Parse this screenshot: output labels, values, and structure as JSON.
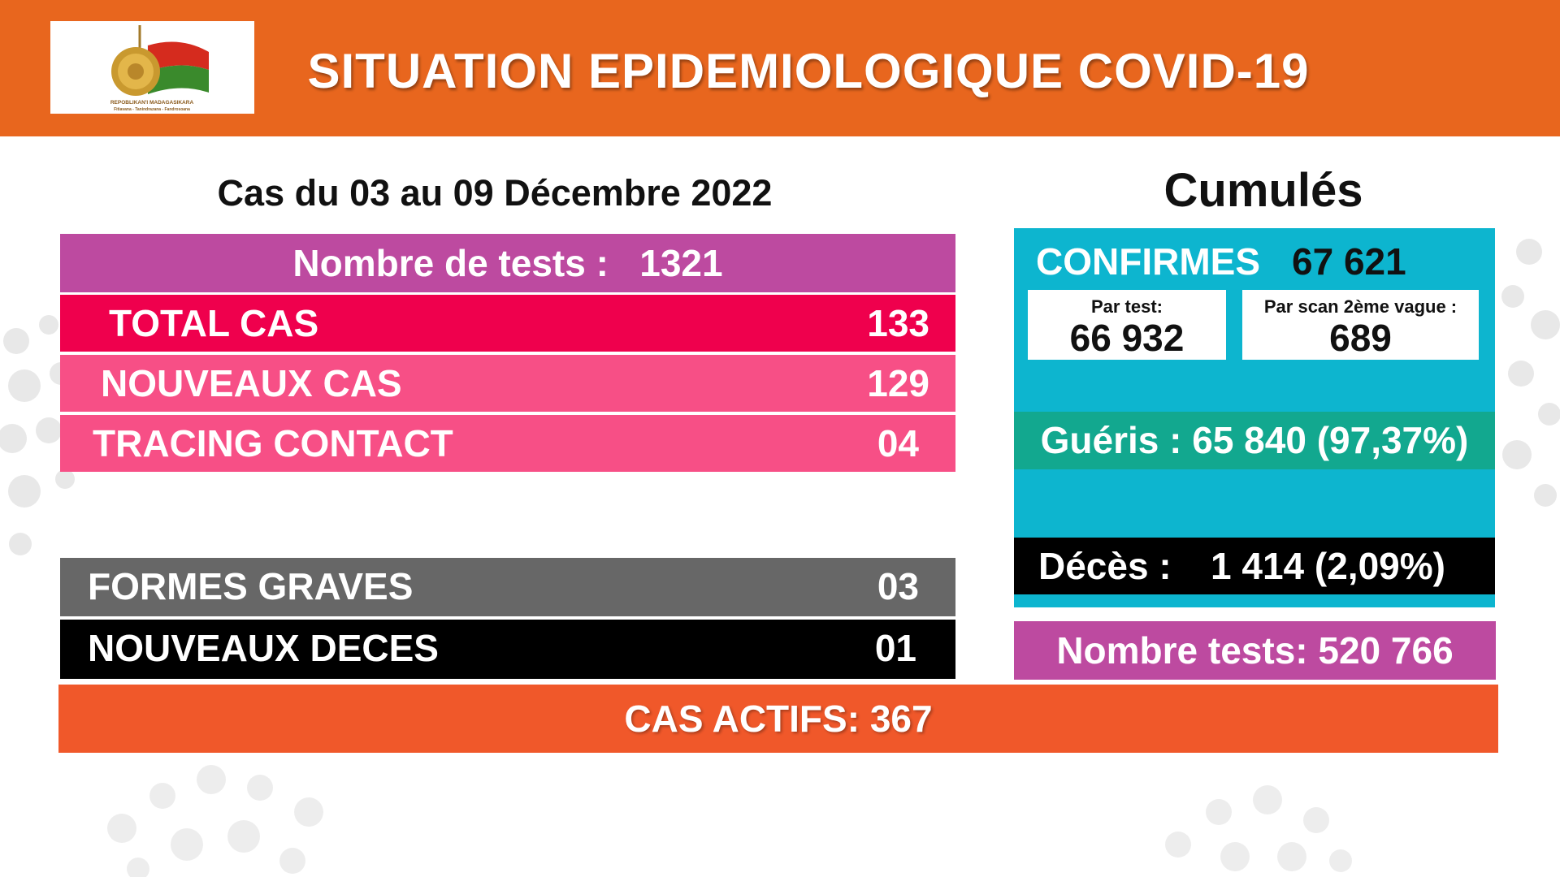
{
  "header": {
    "title": "SITUATION EPIDEMIOLOGIQUE COVID-19",
    "logo_text": "REPOBLIKAN'I MADAGASIKARA",
    "logo_motto": "Fitiavana - Tanindrazana - Fandrosoana",
    "color": "#e8661e"
  },
  "period": {
    "title": "Cas du 03 au 09 Décembre 2022",
    "tests": {
      "label": "Nombre de tests :",
      "value": "1321"
    },
    "rows": [
      {
        "label": "TOTAL CAS",
        "value": "133",
        "color": "#ef004d"
      },
      {
        "label": "NOUVEAUX CAS",
        "value": "129",
        "color": "#f74f86"
      },
      {
        "label": "TRACING CONTACT",
        "value": "04",
        "color": "#f74f86"
      },
      {
        "label": "FORMES GRAVES",
        "value": "03",
        "color": "#676767"
      },
      {
        "label": "NOUVEAUX DECES",
        "value": "01",
        "color": "#000000"
      }
    ]
  },
  "cumul": {
    "title": "Cumulés",
    "confirmes": {
      "label": "CONFIRMES",
      "value": "67 621"
    },
    "par_test": {
      "label": "Par test:",
      "value": "66 932"
    },
    "par_scan": {
      "label": "Par scan 2ème vague :",
      "value": "689"
    },
    "gueris": "Guéris : 65 840 (97,37%)",
    "deces": {
      "label": "Décès :",
      "value": "1 414 (2,09%)"
    },
    "tests_total": "Nombre tests: 520 766"
  },
  "cas_actifs": {
    "label": "CAS ACTIFS:",
    "value": "367"
  }
}
